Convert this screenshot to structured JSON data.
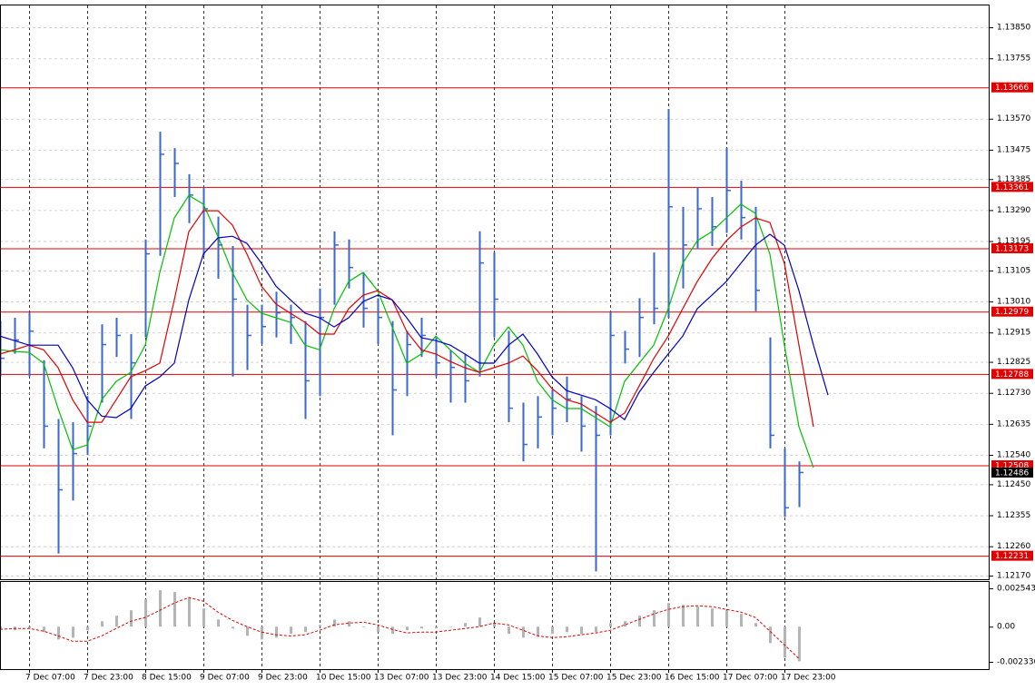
{
  "chart_data": {
    "type": "ohlc",
    "color": "#3a66d8",
    "grid": true,
    "categories": [
      null,
      null,
      "7 Dec 07:00",
      null,
      null,
      null,
      "7 Dec 23:00",
      null,
      null,
      null,
      "8 Dec 15:00",
      null,
      null,
      null,
      "9 Dec 07:00",
      null,
      null,
      null,
      "9 Dec 23:00",
      null,
      null,
      null,
      "10 Dec 15:00",
      null,
      null,
      null,
      "13 Dec 07:00",
      null,
      null,
      null,
      "13 Dec 23:00",
      null,
      null,
      null,
      "14 Dec 15:00",
      null,
      null,
      null,
      "15 Dec 07:00",
      null,
      null,
      null,
      "15 Dec 23:00",
      null,
      null,
      null,
      "16 Dec 15:00",
      null,
      null,
      null,
      "17 Dec 07:00",
      null,
      null,
      null,
      "17 Dec 23:00",
      null,
      null,
      null
    ],
    "high": [
      1.1295,
      1.1296,
      1.12975,
      1.1283,
      1.1265,
      1.1264,
      1.1272,
      1.1294,
      1.1296,
      1.1291,
      1.132,
      1.1353,
      1.1348,
      1.134,
      1.1336,
      1.1327,
      1.1318,
      1.13,
      1.13,
      1.1304,
      1.13,
      1.1295,
      1.1305,
      1.13225,
      1.132,
      1.131,
      1.1302,
      1.1295,
      1.1292,
      1.1296,
      1.129,
      1.1286,
      1.1285,
      1.13225,
      1.1316,
      1.1292,
      1.127,
      1.1272,
      1.1274,
      1.1278,
      1.1272,
      1.1269,
      1.1298,
      1.1292,
      1.1302,
      1.1316,
      1.136,
      1.133,
      1.1336,
      1.1333,
      1.1348,
      1.1338,
      1.133,
      1.129,
      1.1256,
      1.1252,
      null,
      null
    ],
    "low": [
      1.1278,
      1.1285,
      1.1278,
      1.1256,
      1.12238,
      1.124,
      1.1254,
      1.127,
      1.1284,
      1.1265,
      1.129,
      1.1315,
      1.1333,
      1.1325,
      1.1315,
      1.1308,
      1.1278,
      1.128,
      1.1288,
      1.129,
      1.1288,
      1.1265,
      1.1272,
      1.13,
      1.1305,
      1.1293,
      1.1288,
      1.126,
      1.1272,
      1.1284,
      1.1278,
      1.127,
      1.127,
      1.1278,
      1.129,
      1.1264,
      1.1252,
      1.1256,
      1.126,
      1.1264,
      1.1255,
      1.12183,
      1.126,
      1.1282,
      1.1284,
      1.1294,
      1.1296,
      1.1305,
      1.1317,
      1.1318,
      1.1322,
      1.132,
      1.1298,
      1.1256,
      1.1235,
      1.1238,
      null,
      null
    ],
    "close": [
      1.12836,
      1.12892,
      1.12919,
      1.12628,
      1.12433,
      1.12544,
      1.12628,
      1.12878,
      1.12906,
      1.12822,
      1.13156,
      1.13461,
      1.13433,
      1.13336,
      1.13294,
      1.13183,
      1.13017,
      1.12906,
      1.12933,
      1.12975,
      1.12961,
      1.12767,
      1.12961,
      1.13183,
      1.13114,
      1.12989,
      1.12961,
      1.12739,
      1.12878,
      1.12906,
      1.12822,
      1.12808,
      1.12767,
      1.13128,
      1.13017,
      1.12683,
      1.12572,
      1.12656,
      1.12683,
      1.12711,
      1.12628,
      1.126,
      1.12906,
      1.12864,
      1.12961,
      1.12989,
      1.133,
      1.13183,
      1.13294,
      1.13239,
      1.1335,
      1.13267,
      1.13044,
      1.126,
      1.12378,
      1.12486,
      null,
      null
    ],
    "lines": [
      {
        "color": "#00c000",
        "values": [
          1.12862,
          1.12857,
          1.12854,
          1.12821,
          1.12682,
          1.12556,
          1.1257,
          1.12709,
          1.12765,
          1.12793,
          1.12876,
          1.13099,
          1.13266,
          1.13335,
          1.13308,
          1.1321,
          1.13099,
          1.13015,
          1.12974,
          1.1296,
          1.12946,
          1.12876,
          1.12862,
          1.12988,
          1.13071,
          1.13099,
          1.13043,
          1.12932,
          1.12821,
          1.12849,
          1.12904,
          1.12862,
          1.12821,
          1.12793,
          1.12876,
          1.12932,
          1.12876,
          1.12765,
          1.12709,
          1.12682,
          1.12682,
          1.12654,
          1.12626,
          1.12765,
          1.12821,
          1.12876,
          1.12988,
          1.13127,
          1.13196,
          1.13224,
          1.13266,
          1.13308,
          1.1328,
          1.13155,
          1.12876,
          1.12626,
          1.12501,
          null
        ]
      },
      {
        "color": "#e00000",
        "values": [
          1.12849,
          1.12862,
          1.12876,
          1.12862,
          1.12807,
          1.12709,
          1.1264,
          1.1264,
          1.12709,
          1.12779,
          1.12798,
          1.12821,
          1.13015,
          1.13224,
          1.13288,
          1.13288,
          1.13244,
          1.13155,
          1.13057,
          1.13002,
          1.12974,
          1.12946,
          1.1291,
          1.1291,
          1.12988,
          1.13029,
          1.13043,
          1.13015,
          1.12918,
          1.12862,
          1.12849,
          1.12826,
          1.12807,
          1.12793,
          1.12807,
          1.12821,
          1.12843,
          1.12798,
          1.12743,
          1.12709,
          1.12696,
          1.12668,
          1.1264,
          1.12668,
          1.12751,
          1.12835,
          1.12904,
          1.12988,
          1.13071,
          1.13141,
          1.13196,
          1.13238,
          1.13266,
          1.13252,
          1.13127,
          1.12876,
          1.12626,
          null
        ]
      },
      {
        "color": "#0000c0",
        "values": [
          1.12904,
          1.1289,
          1.12876,
          1.12876,
          1.12876,
          1.12807,
          1.12709,
          1.12659,
          1.12654,
          1.12682,
          1.12751,
          1.12779,
          1.12821,
          1.13015,
          1.13155,
          1.13205,
          1.1321,
          1.13188,
          1.13127,
          1.13057,
          1.13015,
          1.12974,
          1.1296,
          1.12932,
          1.1296,
          1.1301,
          1.13029,
          1.13015,
          1.1296,
          1.12899,
          1.1289,
          1.12876,
          1.12849,
          1.12821,
          1.12821,
          1.12876,
          1.1291,
          1.12849,
          1.12779,
          1.12737,
          1.12723,
          1.12709,
          1.12682,
          1.12648,
          1.12732,
          1.12793,
          1.12849,
          1.12904,
          1.12988,
          1.13029,
          1.13071,
          1.13127,
          1.13182,
          1.13216,
          1.13182,
          1.13043,
          1.12876,
          1.12723
        ]
      }
    ],
    "levels": [
      1.13666,
      1.13361,
      1.13173,
      1.12979,
      1.12788,
      1.12508,
      1.12231
    ],
    "level_color": "#e00000",
    "ylim": [
      1.12159,
      1.13917
    ],
    "yticks": [
      {
        "value": 1.1385,
        "label": "1.13850"
      },
      1.13755,
      {
        "value": 1.1357,
        "label": "1.13570"
      },
      1.13475,
      1.13385,
      {
        "value": 1.1329,
        "label": "1.13290"
      },
      1.13195,
      1.13105,
      {
        "value": 1.1301,
        "label": "1.13010"
      },
      1.12915,
      1.12825,
      {
        "value": 1.1273,
        "label": "1.12730"
      },
      1.12635,
      {
        "value": 1.1254,
        "label": "1.12540"
      },
      {
        "value": 1.1245,
        "label": "1.12450"
      },
      1.12355,
      {
        "value": 1.1226,
        "label": "1.12260"
      },
      {
        "value": 1.1217,
        "label": "1.12170"
      }
    ],
    "oscillator": {
      "histogram_color": "#b4b4b4",
      "signal_color": "#e00000",
      "histogram": [
        -0.00018,
        -0.00024,
        -0.00012,
        -0.00036,
        -0.00085,
        -0.00073,
        -0.00024,
        0.00036,
        0.00073,
        0.00109,
        0.00182,
        0.00242,
        0.0023,
        0.00194,
        0.00121,
        0.00048,
        -0.00012,
        -0.00061,
        -0.00085,
        -0.00073,
        -0.00048,
        -0.00036,
        0.00012,
        0.00048,
        0.00036,
        0,
        -0.00036,
        -0.00048,
        -0.00024,
        -0.00012,
        -0.00012,
        0,
        0.00024,
        0.00061,
        0.00024,
        -0.00048,
        -0.00073,
        -0.00061,
        -0.00048,
        -0.00036,
        -0.00048,
        -0.00036,
        0.00024,
        0.00036,
        0.00073,
        0.00109,
        0.00157,
        0.00145,
        0.00133,
        0.00121,
        0.00109,
        0.00085,
        0.00024,
        -0.00109,
        -0.00206,
        -0.0023,
        null,
        null
      ],
      "signal": [
        -0.00018,
        -0.00012,
        -0.00012,
        -0.0003,
        -0.00061,
        -0.00097,
        -0.00097,
        -0.00061,
        -0.00012,
        0.00036,
        0.00061,
        0.00109,
        0.00157,
        0.00194,
        0.00169,
        0.00097,
        0.00042,
        0,
        -0.00036,
        -0.00054,
        -0.00061,
        -0.00054,
        -0.00024,
        0.00012,
        0.00024,
        0.0003,
        0.00012,
        -0.00018,
        -0.00042,
        -0.00036,
        -0.00036,
        -0.00024,
        -0.00012,
        0,
        0.00024,
        0.00012,
        -0.00024,
        -0.00061,
        -0.00073,
        -0.00067,
        -0.00054,
        -0.00042,
        -0.00024,
        0.00012,
        0.00048,
        0.00085,
        0.00115,
        0.00133,
        0.00139,
        0.00133,
        0.00115,
        0.00097,
        0.00061,
        -0.0003,
        -0.00121,
        -0.00212,
        null,
        null
      ],
      "ylim": [
        -0.00282,
        0.00297
      ],
      "yticks": [
        0.002543,
        {
          "value": 0,
          "label": "0.00"
        },
        -0.002336
      ]
    }
  }
}
